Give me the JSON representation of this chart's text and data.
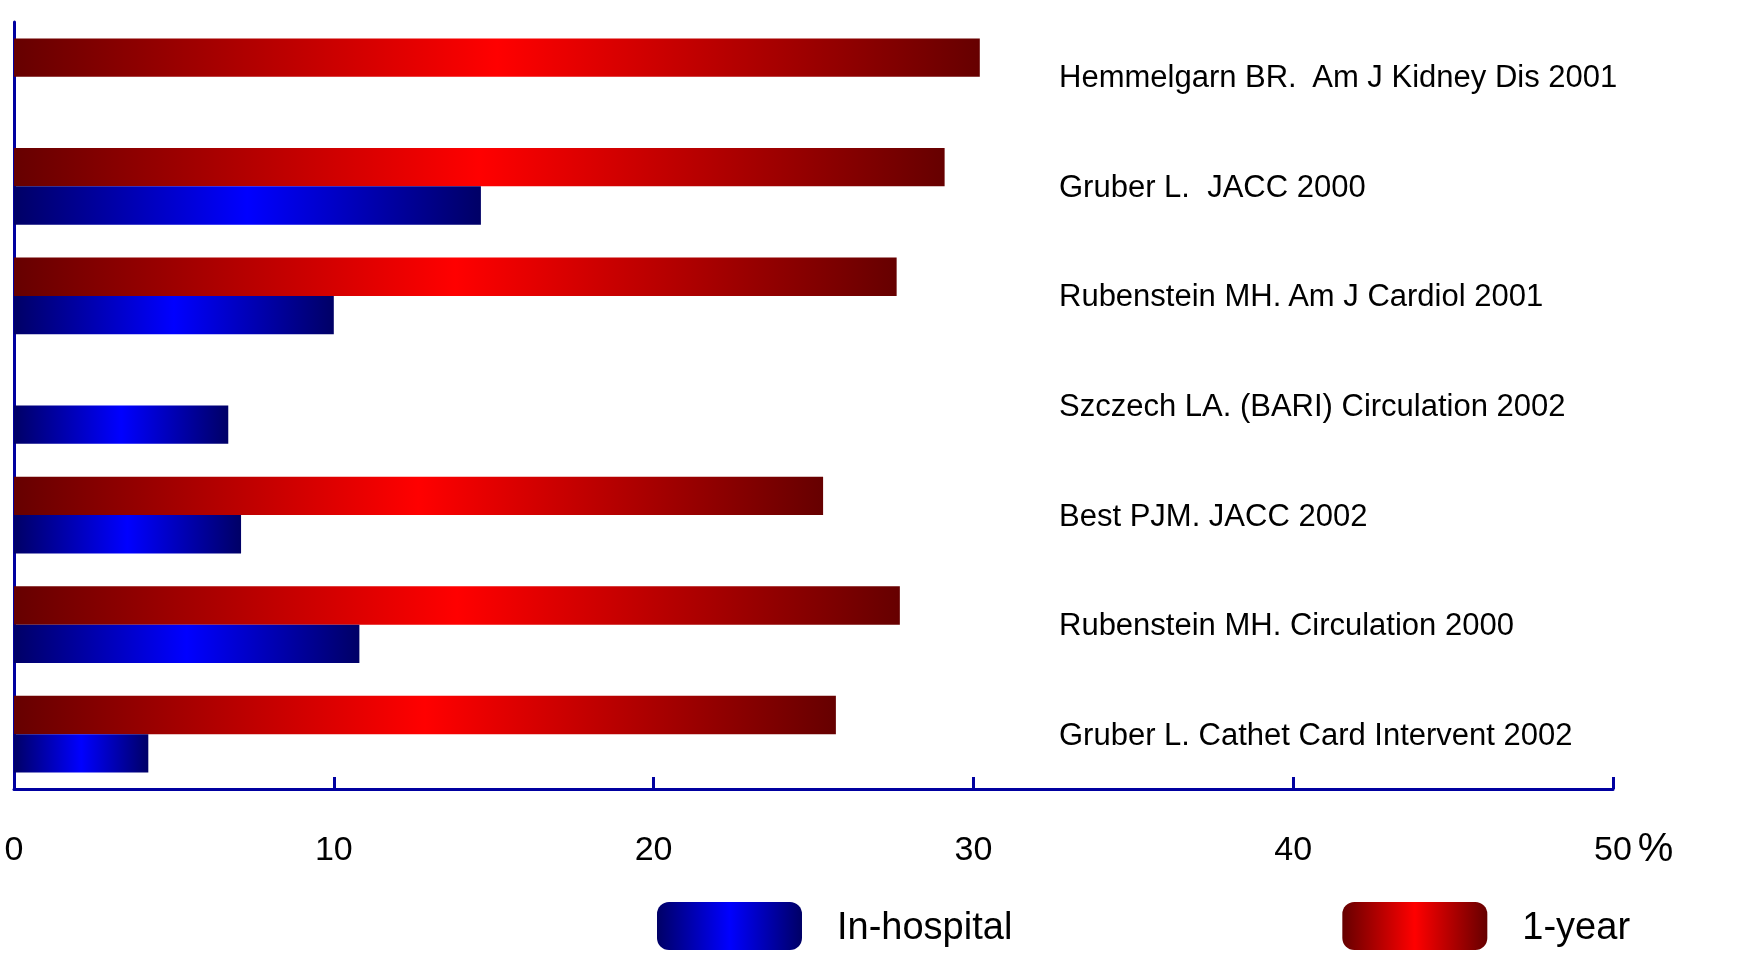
{
  "chart_data": {
    "type": "bar",
    "orientation": "horizontal",
    "xlabel": "%",
    "categories": [
      "Hemmelgarn BR.  Am J Kidney Dis 2001",
      "Gruber L.  JACC 2000",
      "Rubenstein MH. Am J Cardiol 2001",
      "Szczech LA. (BARI) Circulation 2002",
      "Best PJM. JACC 2002",
      "Rubenstein MH. Circulation 2000",
      "Gruber L. Cathet Card Intervent 2002"
    ],
    "series": [
      {
        "name": "1-year",
        "color": "#ff0000",
        "values": [
          30.2,
          29.1,
          27.6,
          null,
          25.3,
          27.7,
          25.7
        ]
      },
      {
        "name": "In-hospital",
        "color": "#0000ff",
        "values": [
          null,
          14.6,
          10.0,
          6.7,
          7.1,
          10.8,
          4.2
        ]
      }
    ],
    "xlim": [
      0,
      50
    ],
    "xticks": [
      0,
      10,
      20,
      30,
      40,
      50
    ],
    "grid": false,
    "legend": "bottom"
  }
}
